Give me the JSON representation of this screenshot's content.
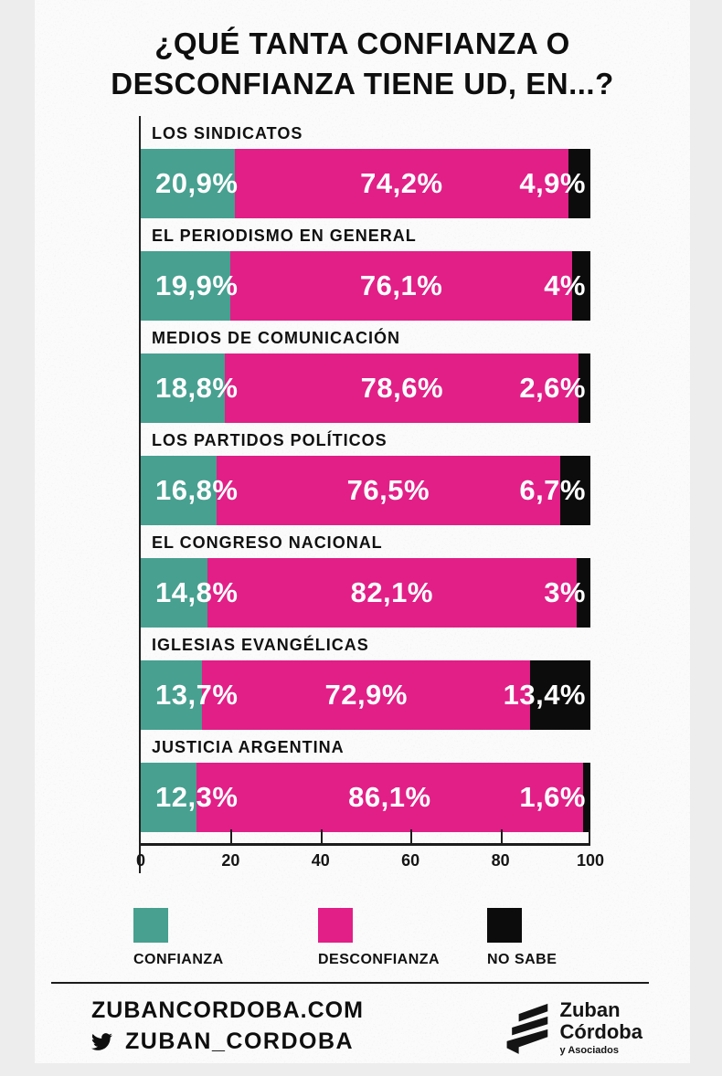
{
  "title": "¿QUÉ TANTA CONFIANZA O DESCONFIANZA TIENE UD, EN...?",
  "colors": {
    "confianza": "#47a090",
    "desconfianza": "#e11f87",
    "no_sabe": "#0c0c0c",
    "text": "#0e0e0e",
    "card_bg": "#fbfbfb",
    "page_bg": "#ededee"
  },
  "chart_data": {
    "type": "bar",
    "orientation": "horizontal",
    "stacked": true,
    "xlim": [
      0,
      100
    ],
    "x_ticks": [
      "0",
      "20",
      "40",
      "60",
      "80",
      "100"
    ],
    "grid": false,
    "legend_position": "bottom",
    "categories": [
      "LOS SINDICATOS",
      "EL PERIODISMO EN GENERAL",
      "MEDIOS  DE COMUNICACIÓN",
      "LOS PARTIDOS POLÍTICOS",
      "EL CONGRESO NACIONAL",
      "IGLESIAS EVANGÉLICAS",
      "JUSTICIA ARGENTINA"
    ],
    "series": [
      {
        "name": "CONFIANZA",
        "values": [
          20.9,
          19.9,
          18.8,
          16.8,
          14.8,
          13.7,
          12.3
        ]
      },
      {
        "name": "DESCONFIANZA",
        "values": [
          74.2,
          76.1,
          78.6,
          76.5,
          82.1,
          72.9,
          86.1
        ]
      },
      {
        "name": "NO SABE",
        "values": [
          4.9,
          4.0,
          2.6,
          6.7,
          3.0,
          13.4,
          1.6
        ]
      }
    ],
    "value_labels": [
      [
        "20,9%",
        "74,2%",
        "4,9%"
      ],
      [
        "19,9%",
        "76,1%",
        "4%"
      ],
      [
        "18,8%",
        "78,6%",
        "2,6%"
      ],
      [
        "16,8%",
        "76,5%",
        "6,7%"
      ],
      [
        "14,8%",
        "82,1%",
        "3%"
      ],
      [
        "13,7%",
        "72,9%",
        "13,4%"
      ],
      [
        "12,3%",
        "86,1%",
        "1,6%"
      ]
    ]
  },
  "legend": {
    "items": [
      {
        "label": "CONFIANZA",
        "color": "#47a090"
      },
      {
        "label": "DESCONFIANZA",
        "color": "#e11f87"
      },
      {
        "label": "NO SABE",
        "color": "#0c0c0c"
      }
    ]
  },
  "footer": {
    "website": "ZUBANCORDOBA.COM",
    "twitter_handle": "ZUBAN_CORDOBA",
    "logo": {
      "line1": "Zuban",
      "line2": "Córdoba",
      "sub": "y Asociados"
    }
  }
}
